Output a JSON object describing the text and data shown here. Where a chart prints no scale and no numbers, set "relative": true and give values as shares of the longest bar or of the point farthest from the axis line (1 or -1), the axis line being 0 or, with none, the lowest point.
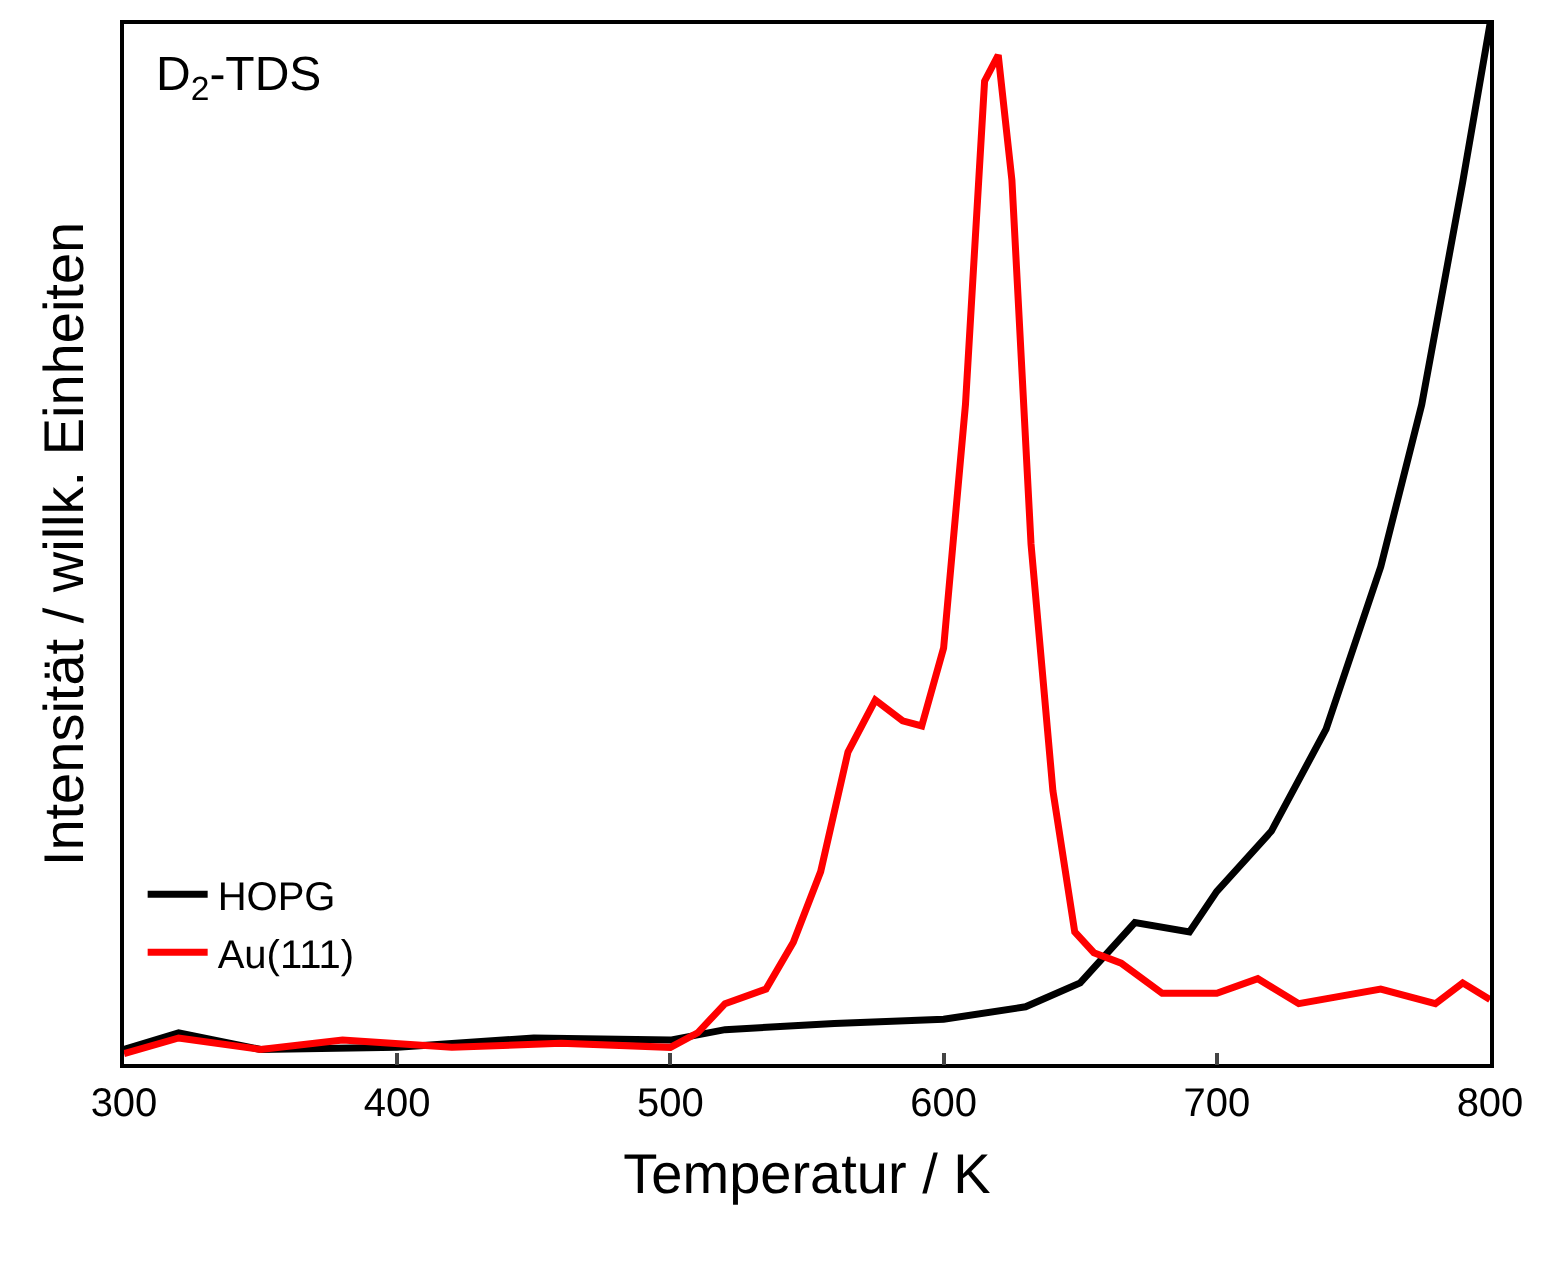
{
  "chart_data": {
    "type": "line",
    "relative": true,
    "xlabel": "Temperatur / K",
    "ylabel": "Intensität / willk. Einheiten",
    "annotations": [
      "D$_{2}$-TDS"
    ],
    "xlim": [
      300,
      800
    ],
    "xticks": [
      300,
      400,
      500,
      600,
      700,
      800
    ],
    "legend": "bottom left",
    "marker": "none",
    "line_style": "solid",
    "series": [
      {
        "name": "HOPG",
        "color": "#000000",
        "x": [
          300,
          320,
          350,
          400,
          450,
          500,
          520,
          560,
          600,
          630,
          650,
          670,
          690,
          700,
          720,
          740,
          760,
          775,
          790,
          800
        ],
        "values": [
          0.014,
          0.03,
          0.014,
          0.016,
          0.025,
          0.023,
          0.033,
          0.039,
          0.043,
          0.055,
          0.078,
          0.136,
          0.127,
          0.166,
          0.224,
          0.322,
          0.478,
          0.634,
          0.848,
          1.0
        ]
      },
      {
        "name": "Au(111)",
        "color": "#ff0000",
        "x": [
          300,
          320,
          350,
          380,
          420,
          460,
          500,
          510,
          520,
          535,
          545,
          555,
          565,
          575,
          585,
          592,
          600,
          608,
          615,
          620,
          625,
          632,
          640,
          648,
          655,
          665,
          680,
          700,
          715,
          730,
          760,
          780,
          790,
          800
        ],
        "values": [
          0.01,
          0.025,
          0.014,
          0.023,
          0.016,
          0.02,
          0.016,
          0.03,
          0.058,
          0.072,
          0.117,
          0.185,
          0.3,
          0.35,
          0.33,
          0.325,
          0.4,
          0.634,
          0.945,
          0.97,
          0.85,
          0.5,
          0.263,
          0.127,
          0.107,
          0.097,
          0.068,
          0.068,
          0.082,
          0.058,
          0.072,
          0.058,
          0.078,
          0.062
        ]
      }
    ]
  }
}
